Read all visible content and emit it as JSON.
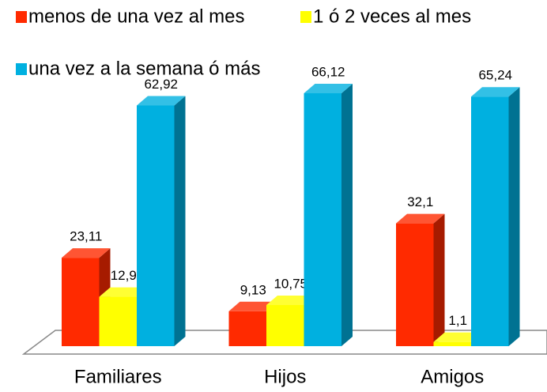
{
  "chart_data": {
    "type": "bar",
    "categories": [
      "Familiares",
      "Hijos",
      "Amigos"
    ],
    "series": [
      {
        "name": "menos de una vez al mes",
        "color": "#ff2a00",
        "values": [
          23.11,
          9.13,
          32.1
        ],
        "value_labels": [
          "23,11",
          "9,13",
          "32,1"
        ]
      },
      {
        "name": "1 ó 2 veces al mes",
        "color": "#ffff00",
        "values": [
          12.9,
          10.75,
          1.1
        ],
        "value_labels": [
          "12,9",
          "10,75",
          "1,1"
        ]
      },
      {
        "name": "una vez a la semana ó más",
        "color": "#00b0e0",
        "values": [
          62.92,
          66.12,
          65.24
        ],
        "value_labels": [
          "62,92",
          "66,12",
          "65,24"
        ]
      }
    ]
  }
}
